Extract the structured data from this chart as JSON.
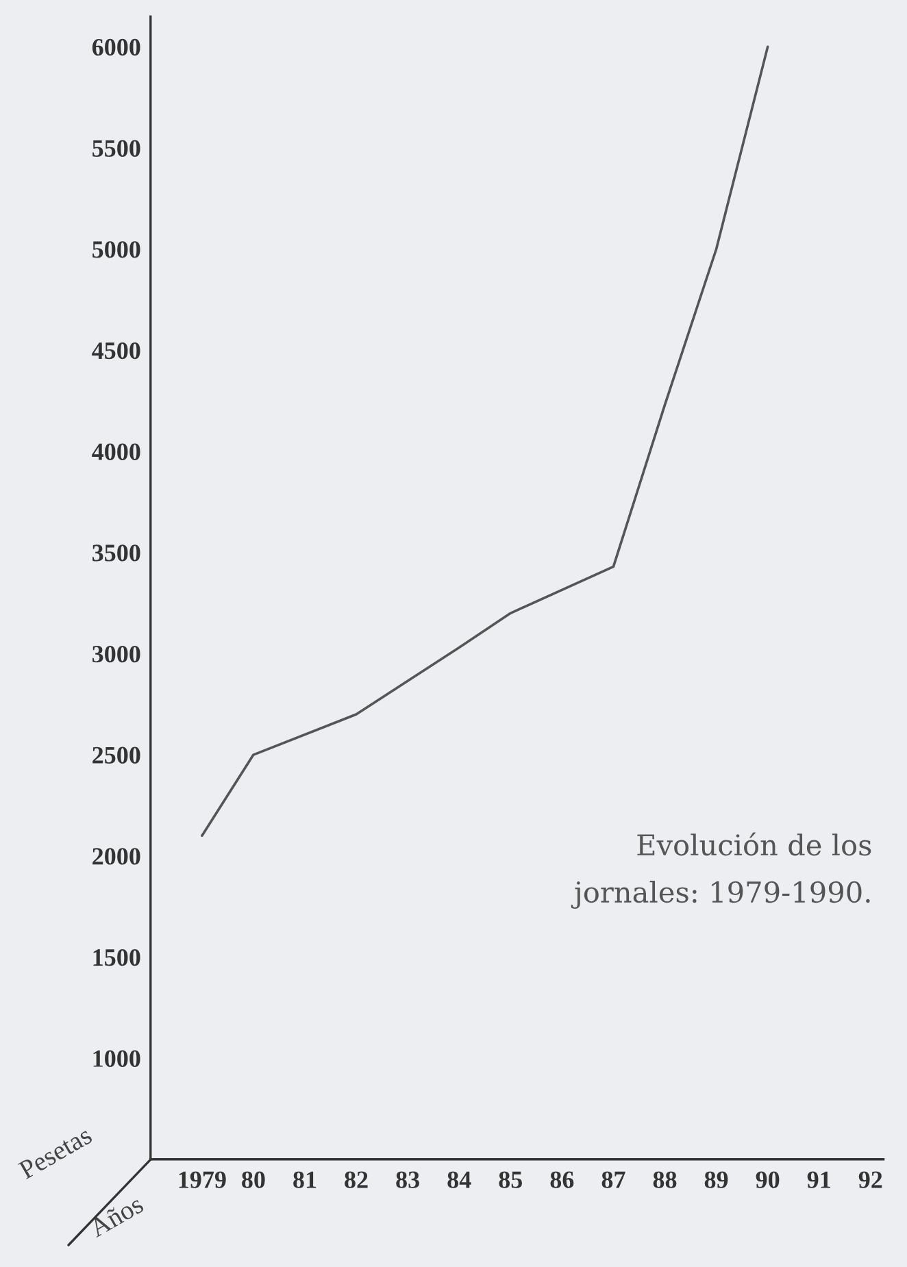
{
  "chart_data": {
    "type": "line",
    "x": [
      1979,
      1980,
      1982,
      1984,
      1985,
      1987,
      1988,
      1989,
      1990
    ],
    "values": [
      2100,
      2500,
      2700,
      3030,
      3200,
      3430,
      4230,
      5000,
      6000
    ],
    "color": "#555555",
    "xlim": [
      1978,
      1992.25
    ],
    "xticks": [
      1979,
      {
        "value": 1980,
        "label": "80"
      },
      {
        "value": 1981,
        "label": "81"
      },
      {
        "value": 1982,
        "label": "82"
      },
      {
        "value": 1983,
        "label": "83"
      },
      {
        "value": 1984,
        "label": "84"
      },
      {
        "value": 1985,
        "label": "85"
      },
      {
        "value": 1986,
        "label": "86"
      },
      {
        "value": 1987,
        "label": "87"
      },
      {
        "value": 1988,
        "label": "88"
      },
      {
        "value": 1989,
        "label": "89"
      },
      {
        "value": 1990,
        "label": "90"
      },
      {
        "value": 1991,
        "label": "91"
      },
      {
        "value": 1992,
        "label": "92"
      }
    ],
    "ylim": [
      500,
      6150
    ],
    "yticks": [
      1000,
      1500,
      2000,
      2500,
      3000,
      3500,
      4000,
      4500,
      5000,
      5500,
      6000
    ],
    "xlabel": "Años",
    "ylabel": "Pesetas",
    "annotations": [
      "Evolución de los\njornales: 1979-1990."
    ],
    "grid": false,
    "legend": false
  }
}
